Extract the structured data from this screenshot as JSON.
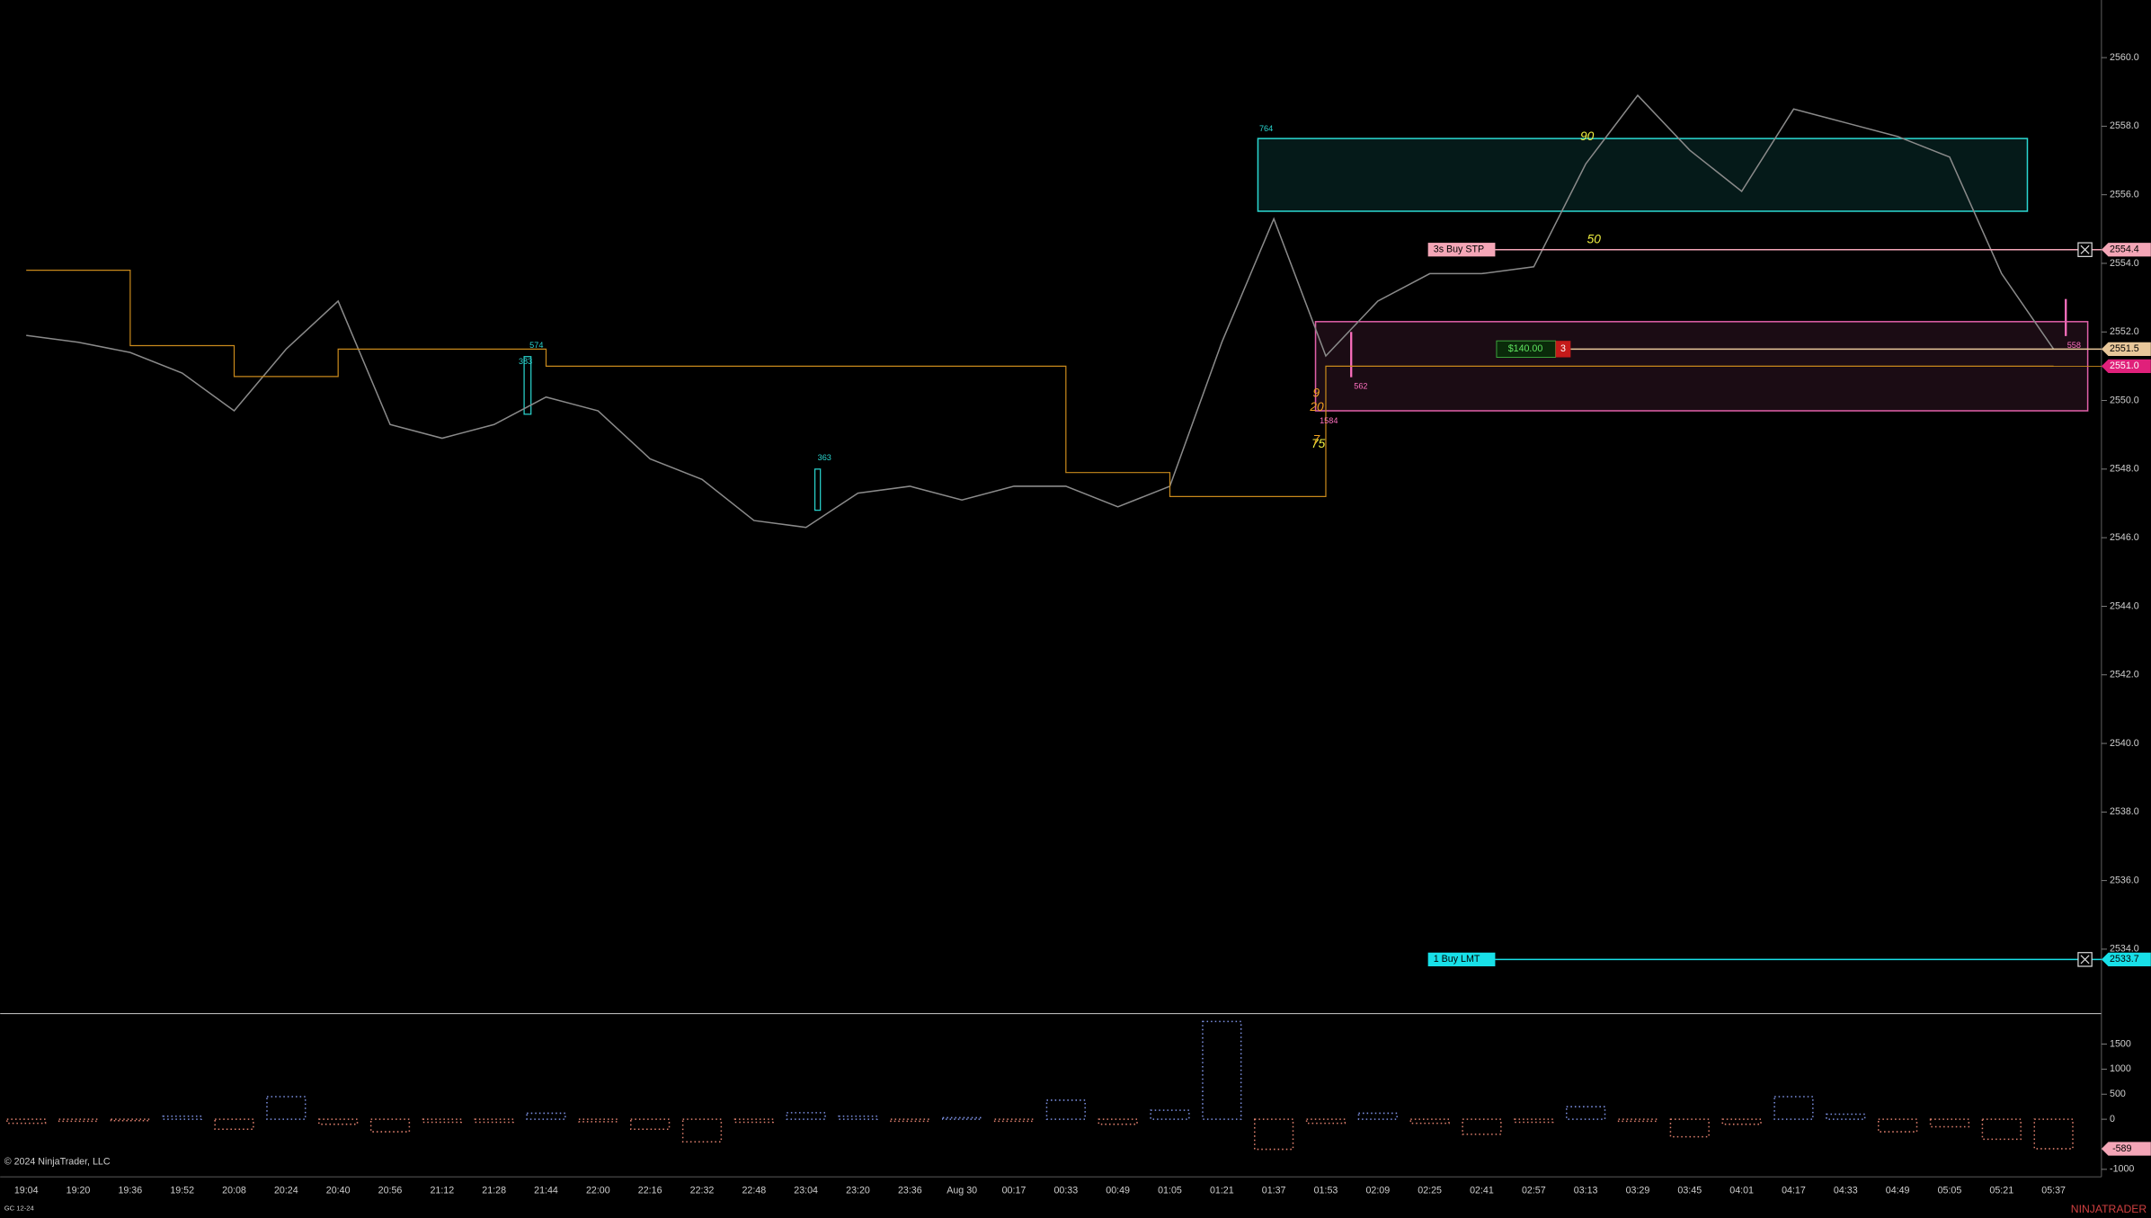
{
  "chart_data": [
    {
      "type": "line",
      "categories": [
        "19:04",
        "19:20",
        "19:36",
        "19:52",
        "20:08",
        "20:24",
        "20:40",
        "20:56",
        "21:12",
        "21:28",
        "21:44",
        "22:00",
        "22:16",
        "22:32",
        "22:48",
        "23:04",
        "23:20",
        "23:36",
        "Aug 30",
        "00:17",
        "00:33",
        "00:49",
        "01:05",
        "01:21",
        "01:37",
        "01:53",
        "02:09",
        "02:25",
        "02:41",
        "02:57",
        "03:13",
        "03:29",
        "03:45",
        "04:01",
        "04:17",
        "04:33",
        "04:49",
        "05:05",
        "05:21",
        "05:37"
      ],
      "series": [
        {
          "name": "GC 12-24",
          "color": "#8a8a8a",
          "values": [
            2551.9,
            2551.7,
            2551.4,
            2550.8,
            2549.7,
            2551.5,
            2552.9,
            2549.3,
            2548.9,
            2549.3,
            2550.1,
            2549.7,
            2548.3,
            2547.7,
            2546.5,
            2546.3,
            2547.3,
            2547.5,
            2547.1,
            2547.5,
            2547.5,
            2546.9,
            2547.5,
            2551.7,
            2555.3,
            2551.3,
            2552.9,
            2553.7,
            2553.7,
            2553.9,
            2556.9,
            2558.9,
            2557.3,
            2556.1,
            2558.5,
            2558.1,
            2557.7,
            2557.1,
            2553.7,
            2551.5
          ]
        },
        {
          "color": "#c8891c",
          "step": true,
          "values": [
            2553.8,
            2553.8,
            2551.6,
            2551.6,
            2550.7,
            2550.7,
            2551.5,
            2551.5,
            2551.5,
            2551.5,
            2551.0,
            2551.0,
            2551.0,
            2551.0,
            2551.0,
            2551.0,
            2551.0,
            2551.0,
            2551.0,
            2551.0,
            2547.9,
            2547.9,
            2547.2,
            2547.2,
            2547.2,
            2551.0,
            2551.0,
            2551.0,
            2551.0,
            2551.0,
            2551.0,
            2551.0,
            2551.0,
            2551.0,
            2551.0,
            2551.0,
            2551.0,
            2551.0,
            2551.0,
            2551.0
          ]
        }
      ],
      "ylim": [
        2532.16,
        2561.68
      ],
      "yticks": [
        {
          "value": 2560,
          "label": "2560.0"
        },
        {
          "value": 2558,
          "label": "2558.0"
        },
        {
          "value": 2556,
          "label": "2556.0"
        },
        {
          "value": 2554,
          "label": "2554.0"
        },
        {
          "value": 2552,
          "label": "2552.0"
        },
        {
          "value": 2550,
          "label": "2550.0"
        },
        {
          "value": 2548,
          "label": "2548.0"
        },
        {
          "value": 2546,
          "label": "2546.0"
        },
        {
          "value": 2544,
          "label": "2544.0"
        },
        {
          "value": 2542,
          "label": "2542.0"
        },
        {
          "value": 2540,
          "label": "2540.0"
        },
        {
          "value": 2538,
          "label": "2538.0"
        },
        {
          "value": 2536,
          "label": "2536.0"
        },
        {
          "value": 2534,
          "label": "2534.0"
        }
      ],
      "zones": [
        {
          "top": 2557.64,
          "bottom": 2555.52,
          "color": "#2ad6d0"
        },
        {
          "top": 2552.3,
          "bottom": 2549.7,
          "color": "#e060a8"
        }
      ],
      "orders": [
        {
          "label": "3s  Buy STP",
          "price": 2554.4,
          "color": "#f4a6b7"
        },
        {
          "label": "1  Buy LMT",
          "price": 2533.7,
          "color": "#18e0e8"
        }
      ],
      "position": {
        "pnl": "$140.00",
        "quantity": "3",
        "price": 2551.5
      },
      "last_price": {
        "value": 2551,
        "label": "2551.0"
      },
      "annotations": [
        "764",
        "574",
        "383",
        "363",
        "1584",
        "562",
        "558",
        "90",
        "50",
        "9",
        "20",
        "75",
        "7"
      ]
    },
    {
      "type": "bar",
      "values": [
        -80,
        -40,
        -30,
        60,
        -200,
        450,
        -100,
        -250,
        -60,
        -60,
        120,
        -50,
        -200,
        -450,
        -60,
        130,
        60,
        -40,
        30,
        -40,
        380,
        -100,
        180,
        1950,
        -600,
        -80,
        120,
        -80,
        -300,
        -60,
        250,
        -40,
        -350,
        -100,
        450,
        100,
        -250,
        -150,
        -400,
        -589
      ],
      "positive_color": "#7b8fe0",
      "negative_color": "#e0806e",
      "ylim": [
        -1150,
        2080
      ],
      "yticks": [
        1500,
        1000,
        500,
        0,
        -1000
      ],
      "last_value": -589
    }
  ],
  "footer": {
    "copyright": "© 2024 NinjaTrader, LLC",
    "instrument": "GC 12-24",
    "brand": "NINJATRADER"
  }
}
